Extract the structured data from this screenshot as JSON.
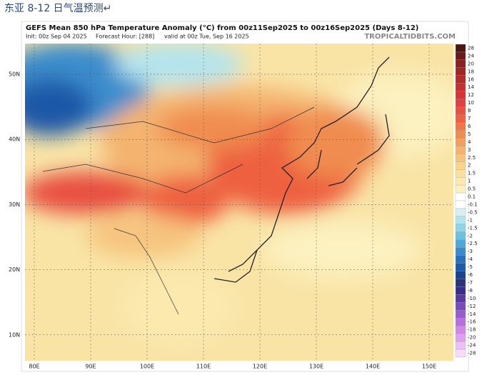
{
  "caption": "东亚 8-12 日气温预测↵",
  "header": {
    "title": "GEFS Mean 850 hPa Temperature Anomaly (°C) from 00z11Sep2025 to 00z16Sep2025 (Days 8-12)",
    "source": "TROPICALTIDBITS.COM",
    "init": "Init: 00z Sep 04 2025",
    "forecast_hour": "Forecast Hour: [288]",
    "valid": "valid at 00z Tue, Sep 16 2025"
  },
  "map": {
    "lat_labels": [
      "50N",
      "40N",
      "30N",
      "20N",
      "10N"
    ],
    "lon_labels": [
      "80E",
      "90E",
      "100E",
      "110E",
      "120E",
      "130E",
      "140E",
      "150E"
    ]
  },
  "colorbar": {
    "labels": [
      "28",
      "24",
      "20",
      "18",
      "16",
      "14",
      "12",
      "10",
      "8",
      "7",
      "6",
      "5",
      "4",
      "3",
      "2.5",
      "2",
      "1.5",
      "1",
      "0.5",
      "0.1",
      "-0.1",
      "-0.5",
      "-1",
      "-1.5",
      "-2",
      "-2.5",
      "-3",
      "-4",
      "-5",
      "-6",
      "-7",
      "-8",
      "-10",
      "-12",
      "-14",
      "-16",
      "-18",
      "-20",
      "-24",
      "-28"
    ],
    "colors": [
      "#4d1414",
      "#6b1a1a",
      "#8a2020",
      "#a02525",
      "#b52a2a",
      "#c83030",
      "#d63535",
      "#e04040",
      "#e85040",
      "#ee6040",
      "#f07848",
      "#f08c50",
      "#f2a060",
      "#f4b470",
      "#f6c47e",
      "#f8d48c",
      "#f9e09c",
      "#fbe9ae",
      "#fcf1c0",
      "#ffffff",
      "#ffffff",
      "#d8f0f4",
      "#b4e4ee",
      "#90d4e8",
      "#6cc0e0",
      "#50a8d8",
      "#3a8ccc",
      "#2a70bc",
      "#1e58a8",
      "#1a4490",
      "#2a3478",
      "#3c2c8a",
      "#5a3aa0",
      "#7a4ab8",
      "#9a5ccc",
      "#b870dc",
      "#d088e8",
      "#e0a0f0",
      "#ecc0f6",
      "#f4dcfa"
    ]
  }
}
